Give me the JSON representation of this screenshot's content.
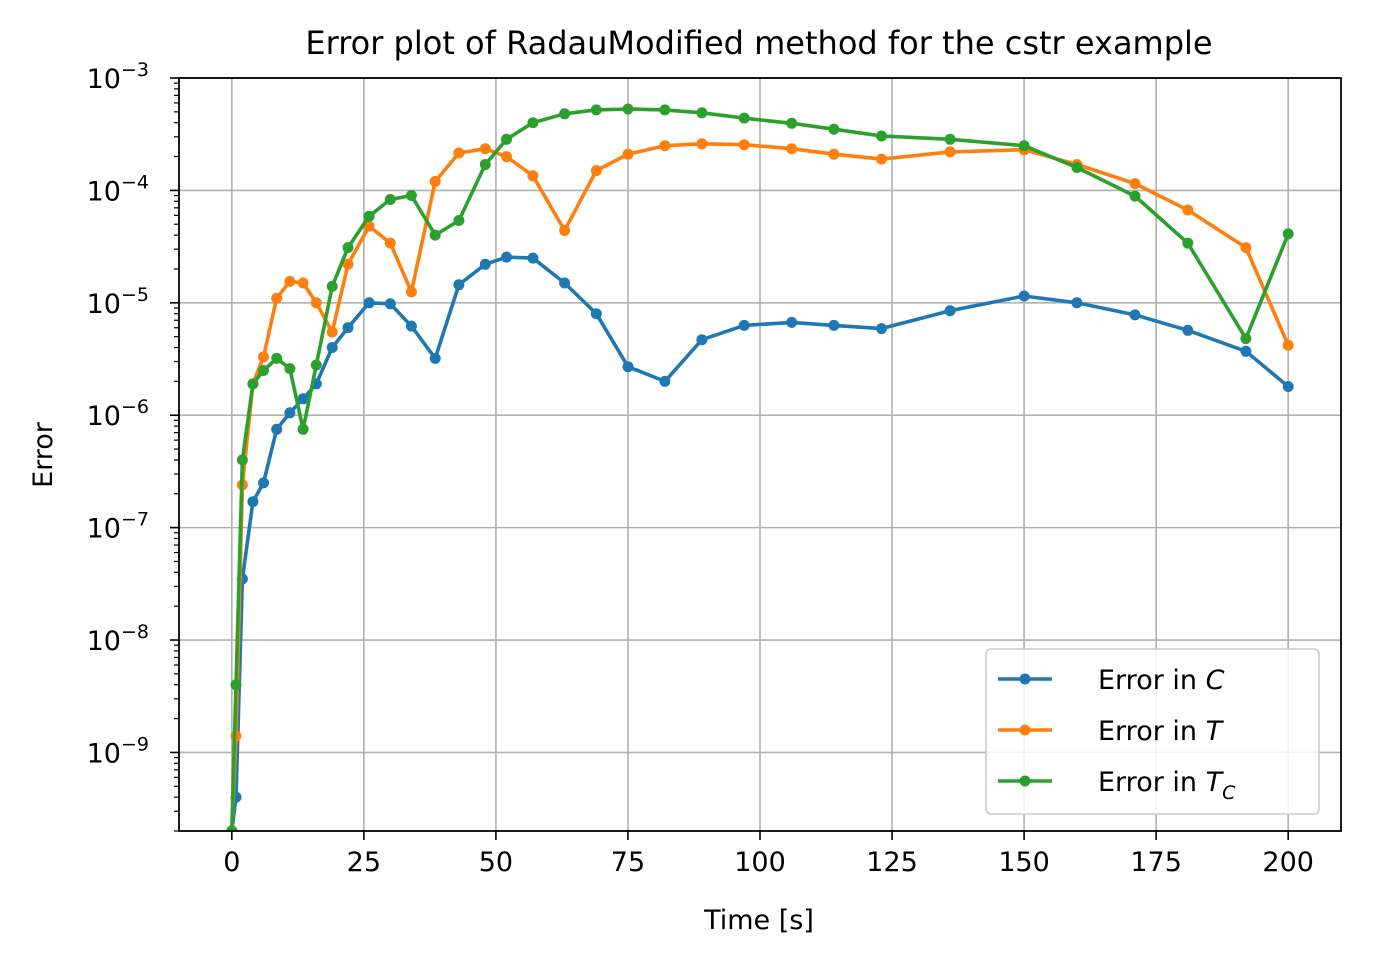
{
  "chart_data": {
    "type": "line",
    "title": "Error plot of RadauModified method for the cstr example",
    "xlabel": "Time [s]",
    "ylabel": "Error",
    "xlim": [
      -10,
      210
    ],
    "ylim": [
      2e-10,
      0.001
    ],
    "yscale": "log",
    "grid": true,
    "legend_placement": "lower-right",
    "x_ticks": [
      "0",
      "25",
      "50",
      "75",
      "100",
      "125",
      "150",
      "175",
      "200"
    ],
    "y_tick_mantissa": "10",
    "y_tick_exponents": [
      "−9",
      "−8",
      "−7",
      "−6",
      "−5",
      "−4",
      "−3"
    ],
    "x": [
      0,
      0.8,
      2,
      4,
      6,
      8.5,
      11,
      13.5,
      16,
      19,
      22,
      26,
      30,
      34,
      38.5,
      43,
      48,
      52,
      57,
      63,
      69,
      75,
      82,
      89,
      97,
      106,
      114,
      123,
      136,
      150,
      160,
      171,
      181,
      192,
      200
    ],
    "series": [
      {
        "name": "Error in C",
        "label_main": "Error in ",
        "label_var": "C",
        "label_sub": "",
        "color": "#1f77b4",
        "values": [
          2e-10,
          4e-10,
          3.5e-08,
          1.7e-07,
          2.5e-07,
          7.5e-07,
          1.05e-06,
          1.4e-06,
          1.9e-06,
          4e-06,
          6e-06,
          1e-05,
          9.8e-06,
          6.2e-06,
          3.2e-06,
          1.45e-05,
          2.2e-05,
          2.55e-05,
          2.5e-05,
          1.5e-05,
          8e-06,
          2.7e-06,
          2e-06,
          4.7e-06,
          6.3e-06,
          6.7e-06,
          6.3e-06,
          5.9e-06,
          8.5e-06,
          1.15e-05,
          1e-05,
          7.8e-06,
          5.7e-06,
          3.7e-06,
          1.8e-06
        ]
      },
      {
        "name": "Error in T",
        "label_main": "Error in ",
        "label_var": "T",
        "label_sub": "",
        "color": "#ff7f0e",
        "values": [
          2e-10,
          1.4e-09,
          2.4e-07,
          1.9e-06,
          3.3e-06,
          1.1e-05,
          1.55e-05,
          1.5e-05,
          1e-05,
          5.5e-06,
          2.2e-05,
          4.8e-05,
          3.4e-05,
          1.25e-05,
          0.00012,
          0.000215,
          0.000235,
          0.0002,
          0.000135,
          4.4e-05,
          0.00015,
          0.00021,
          0.00025,
          0.00026,
          0.000255,
          0.000235,
          0.00021,
          0.00019,
          0.00022,
          0.00023,
          0.00017,
          0.000115,
          6.7e-05,
          3.1e-05,
          4.2e-06
        ]
      },
      {
        "name": "Error in T_C",
        "label_main": "Error in ",
        "label_var": "T",
        "label_sub": "C",
        "color": "#2ca02c",
        "values": [
          2e-10,
          4e-09,
          4e-07,
          1.9e-06,
          2.5e-06,
          3.2e-06,
          2.6e-06,
          7.5e-07,
          2.8e-06,
          1.4e-05,
          3.1e-05,
          5.9e-05,
          8.3e-05,
          9e-05,
          4e-05,
          5.4e-05,
          0.00017,
          0.000285,
          0.0004,
          0.00048,
          0.00052,
          0.00053,
          0.00052,
          0.00049,
          0.00044,
          0.000395,
          0.00035,
          0.000305,
          0.000285,
          0.00025,
          0.00016,
          8.9e-05,
          3.4e-05,
          4.8e-06,
          4.1e-05
        ]
      }
    ]
  }
}
